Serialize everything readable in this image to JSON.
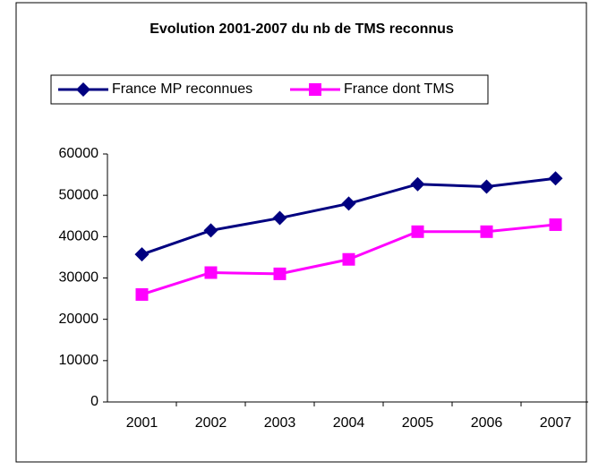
{
  "chart_data": {
    "type": "line",
    "title": "Evolution 2001-2007 du nb de TMS reconnus",
    "categories": [
      "2001",
      "2002",
      "2003",
      "2004",
      "2005",
      "2006",
      "2007"
    ],
    "series": [
      {
        "name": "France MP reconnues",
        "color": "#000080",
        "marker": "diamond",
        "values": [
          35700,
          41500,
          44500,
          48000,
          52700,
          52100,
          54100
        ]
      },
      {
        "name": "France dont TMS",
        "color": "#ff00ff",
        "marker": "square",
        "values": [
          26000,
          31300,
          31000,
          34500,
          41200,
          41200,
          42900
        ]
      }
    ],
    "ylim": [
      0,
      60000
    ],
    "yticks": [
      0,
      10000,
      20000,
      30000,
      40000,
      50000,
      60000
    ],
    "grid": false,
    "legend": "top"
  }
}
